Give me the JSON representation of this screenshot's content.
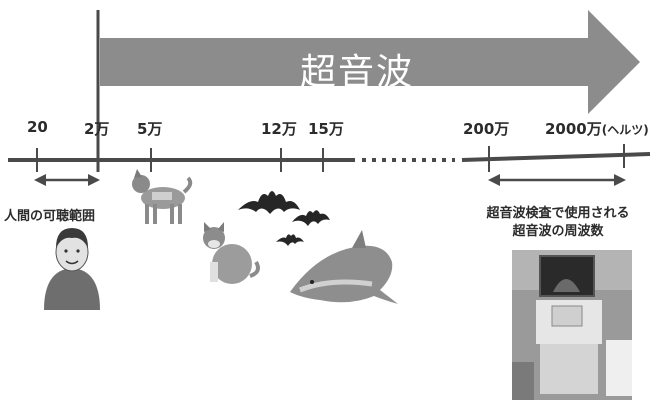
{
  "arrow_title": "超音波",
  "ticks": [
    {
      "label": "20"
    },
    {
      "label": "2万"
    },
    {
      "label": "5万"
    },
    {
      "label": "12万"
    },
    {
      "label": "15万"
    },
    {
      "label": "200万"
    },
    {
      "label": "2000万",
      "suffix": "(ヘルツ)"
    }
  ],
  "human_range_label": "人間の可聴範囲",
  "ultrasound_exam_label_line1": "超音波検査で使用される",
  "ultrasound_exam_label_line2": "超音波の周波数",
  "colors": {
    "arrow_fill": "#8c8c8c",
    "arrow_text": "#ffffff",
    "axis": "#4a4a4a",
    "text": "#2b2b2b"
  },
  "icons": [
    "human-icon",
    "dog-icon",
    "cat-icon",
    "bat-icon",
    "dolphin-icon",
    "ultrasound-machine-icon"
  ]
}
